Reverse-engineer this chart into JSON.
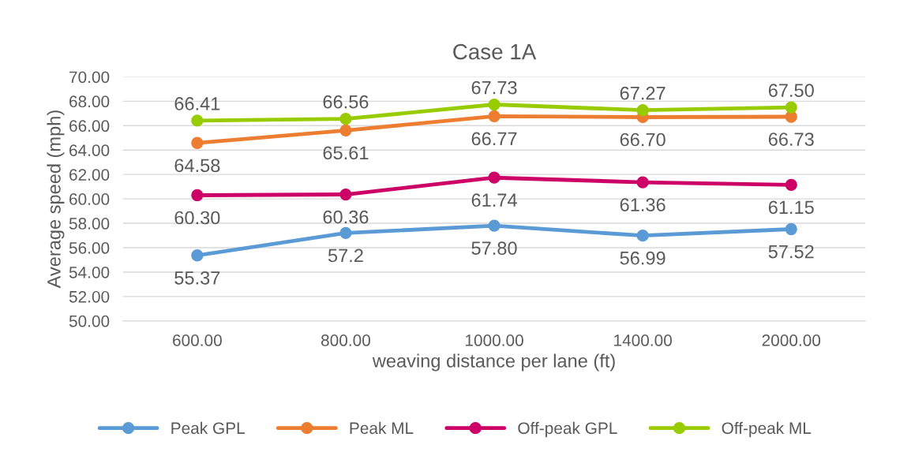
{
  "chart_data": {
    "type": "line",
    "title": "Case 1A",
    "xlabel": "weaving distance per lane (ft)",
    "ylabel": "Average speed (mph)",
    "categories": [
      "600.00",
      "800.00",
      "1000.00",
      "1400.00",
      "2000.00"
    ],
    "series": [
      {
        "name": "Peak GPL",
        "color": "#5b9bd5",
        "values": [
          55.37,
          57.2,
          57.8,
          56.99,
          57.52
        ],
        "value_labels": [
          "55.37",
          "57.2",
          "57.80",
          "56.99",
          "57.52"
        ]
      },
      {
        "name": "Peak ML",
        "color": "#ed7d31",
        "values": [
          64.58,
          65.61,
          66.77,
          66.7,
          66.73
        ],
        "value_labels": [
          "64.58",
          "65.61",
          "66.77",
          "66.70",
          "66.73"
        ]
      },
      {
        "name": "Off-peak GPL",
        "color": "#cc0066",
        "values": [
          60.3,
          60.36,
          61.74,
          61.36,
          61.15
        ],
        "value_labels": [
          "60.30",
          "60.36",
          "61.74",
          "61.36",
          "61.15"
        ]
      },
      {
        "name": "Off-peak ML",
        "color": "#99cc00",
        "values": [
          66.41,
          66.56,
          67.73,
          67.27,
          67.5
        ],
        "value_labels": [
          "66.41",
          "66.56",
          "67.73",
          "67.27",
          "67.50"
        ]
      }
    ],
    "ylim": [
      50,
      70
    ],
    "yticks": [
      {
        "value": 50,
        "label": "50.00"
      },
      {
        "value": 52,
        "label": "52.00"
      },
      {
        "value": 54,
        "label": "54.00"
      },
      {
        "value": 56,
        "label": "56.00"
      },
      {
        "value": 58,
        "label": "58.00"
      },
      {
        "value": 60,
        "label": "60.00"
      },
      {
        "value": 62,
        "label": "62.00"
      },
      {
        "value": 64,
        "label": "64.00"
      },
      {
        "value": 66,
        "label": "66.00"
      },
      {
        "value": 68,
        "label": "68.00"
      },
      {
        "value": 70,
        "label": "70.00"
      }
    ],
    "grid": "y",
    "legend": "bottom",
    "marker": "circle",
    "line_style": "solid"
  }
}
